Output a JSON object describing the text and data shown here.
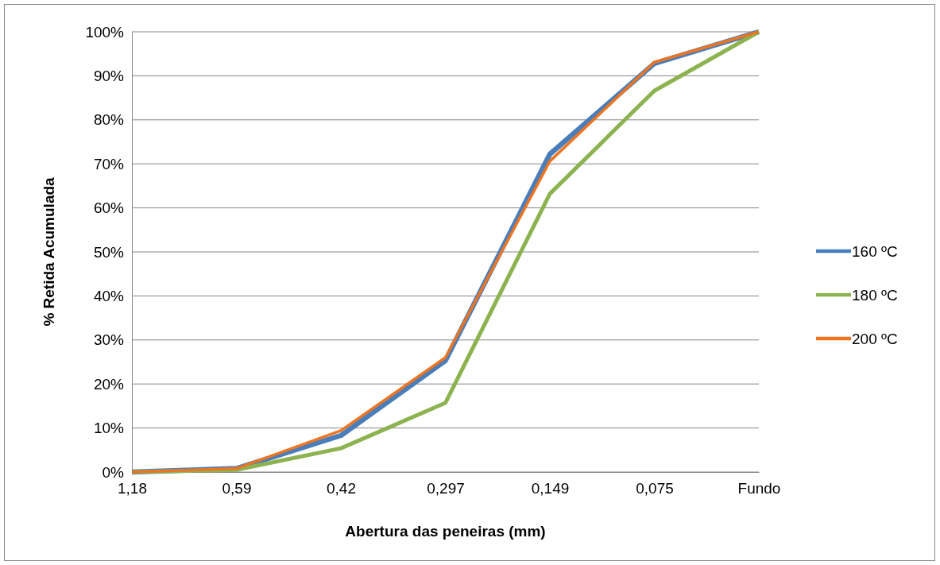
{
  "chart_data": {
    "type": "line",
    "xlabel": "Abertura das peneiras (mm)",
    "ylabel": "% Retida Acumulada",
    "categories": [
      "1,18",
      "0,59",
      "0,42",
      "0,297",
      "0,149",
      "0,075",
      "Fundo"
    ],
    "series": [
      {
        "name": "160 ºC",
        "color": "#4a7ebb",
        "values": [
          0,
          0.8,
          8.3,
          25.3,
          72.2,
          92.8,
          100
        ]
      },
      {
        "name": "180 ºC",
        "color": "#8cb350",
        "values": [
          0,
          0.5,
          5.4,
          15.7,
          63.2,
          86.6,
          100
        ]
      },
      {
        "name": "200 ºC",
        "color": "#ec7522",
        "values": [
          0,
          0.8,
          9.4,
          26,
          70.6,
          93.1,
          100
        ]
      }
    ],
    "ylim": [
      0,
      100
    ],
    "yticks": [
      {
        "value": 0,
        "label": "0%"
      },
      {
        "value": 10,
        "label": "10%"
      },
      {
        "value": 20,
        "label": "20%"
      },
      {
        "value": 30,
        "label": "30%"
      },
      {
        "value": 40,
        "label": "40%"
      },
      {
        "value": 50,
        "label": "50%"
      },
      {
        "value": 60,
        "label": "60%"
      },
      {
        "value": 70,
        "label": "70%"
      },
      {
        "value": 80,
        "label": "80%"
      },
      {
        "value": 90,
        "label": "90%"
      },
      {
        "value": 100,
        "label": "100%"
      }
    ],
    "grid": "y",
    "legend": "right",
    "marker": "none",
    "line_style": "solid"
  }
}
